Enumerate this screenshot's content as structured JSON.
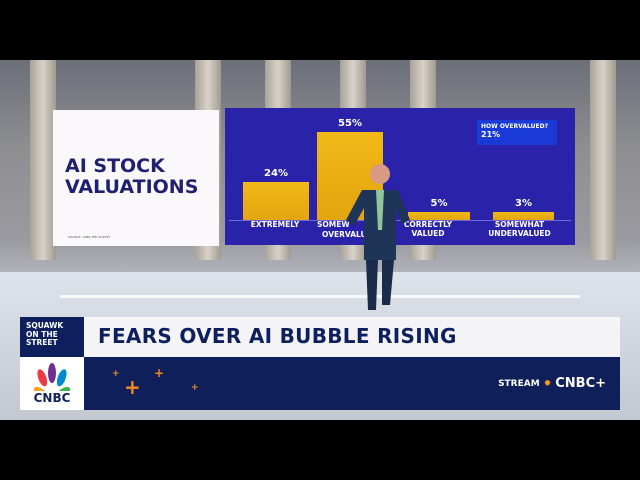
{
  "title_card": {
    "title": "AI STOCK VALUATIONS",
    "source": "SOURCE: CNBC FED SURVEY"
  },
  "callout": {
    "question": "HOW OVERVALUED?",
    "answer": "21%"
  },
  "chart_data": {
    "type": "bar",
    "categories": [
      "EXTREMELY OVERVALUED",
      "SOMEWHAT OVERVALUED",
      "CORRECTLY VALUED",
      "SOMEWHAT UNDERVALUED"
    ],
    "visible_category_labels": [
      "EXTREMELY",
      "OVERVALUED",
      "SOMEW",
      "CORRECTLY VALUED",
      "SOMEWHAT UNDERVALUED"
    ],
    "values": [
      24,
      55,
      5,
      3
    ],
    "value_labels": [
      "24%",
      "55%",
      "5%",
      "3%"
    ],
    "bar_color": "#f2b817",
    "background": "#2a22a8"
  },
  "lower_third": {
    "show": "SQUAWK ON THE STREET",
    "headline": "FEARS OVER AI BUBBLE RISING",
    "network": "CNBC",
    "stream_label": "STREAM",
    "stream_brand": "CNBC+",
    "colors": {
      "navy": "#0f1f5a",
      "accent": "#f48a1f"
    }
  }
}
